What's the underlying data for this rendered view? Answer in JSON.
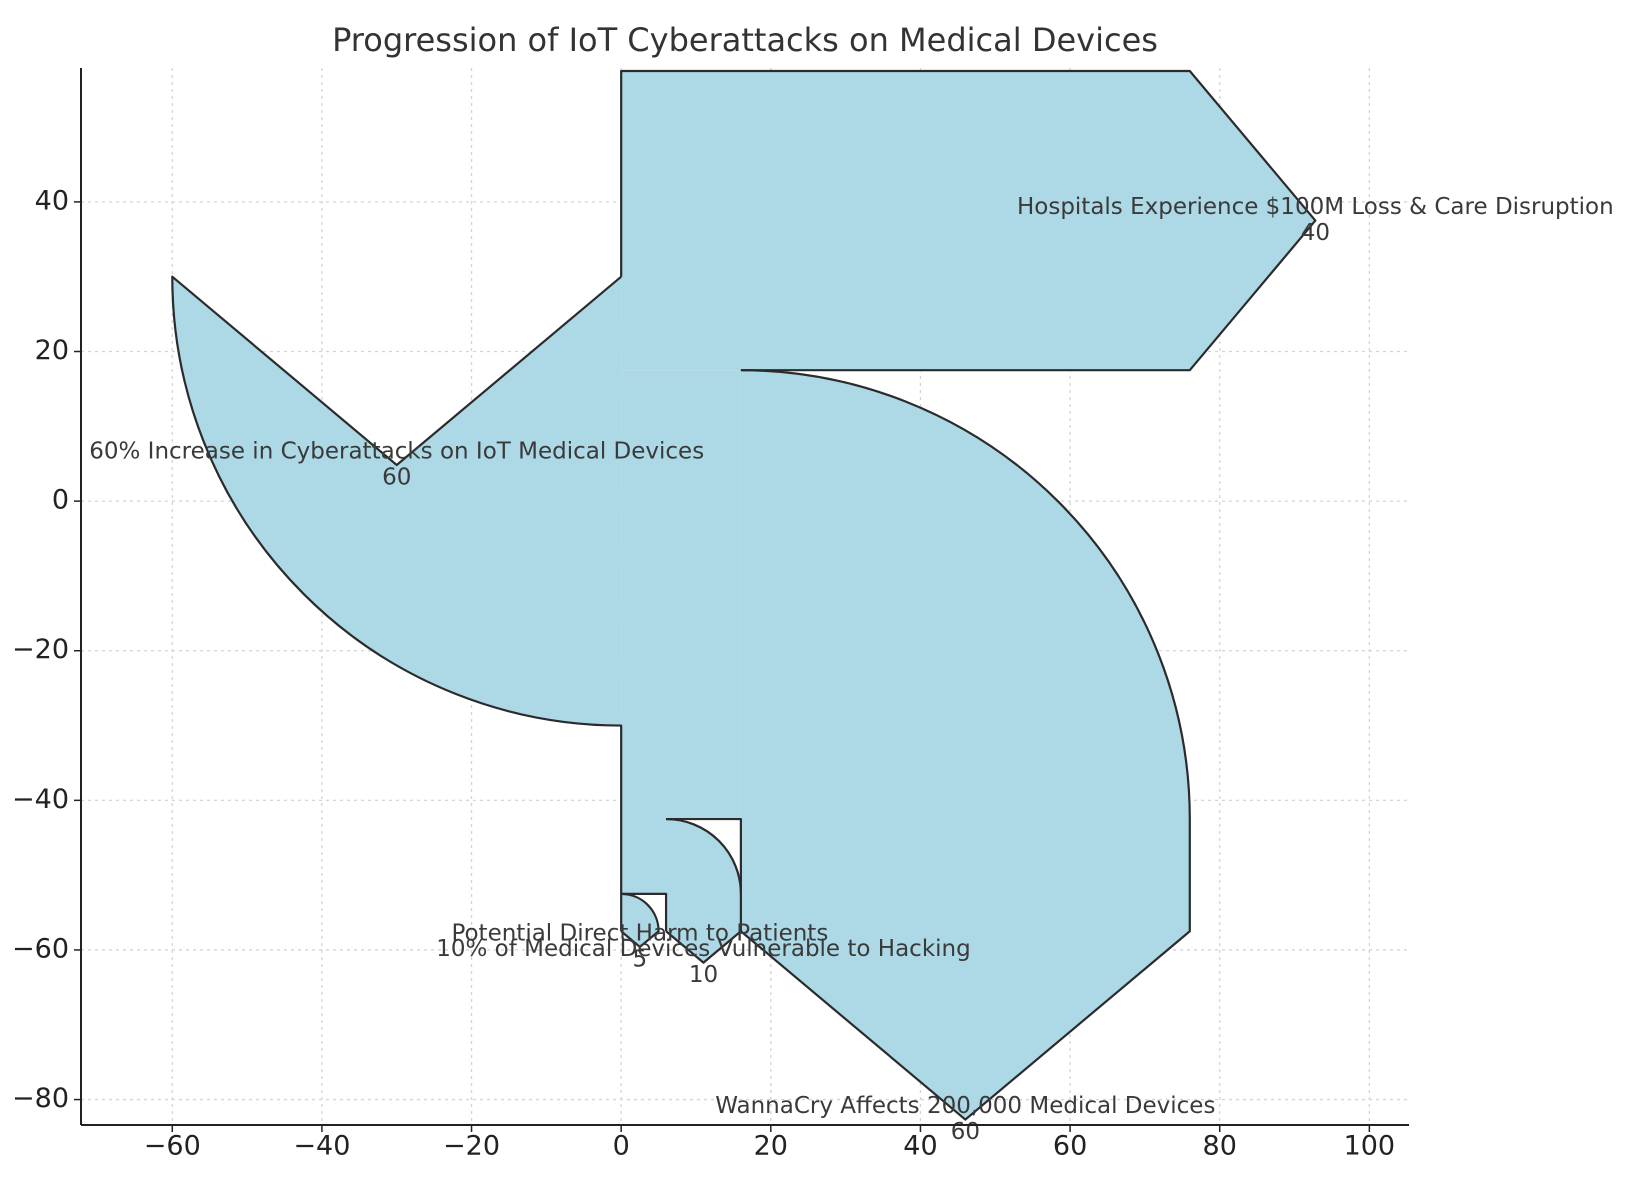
{
  "chart_data": {
    "type": "sankey",
    "title": "Progression of IoT Cyberattacks on Medical Devices",
    "flows": [
      {
        "label": "60% Increase in Cyberattacks on IoT Medical Devices",
        "value": 60
      },
      {
        "label": "Hospitals Experience $100M Loss & Care Disruption",
        "value": 40
      },
      {
        "label": "WannaCry Affects 200,000 Medical Devices",
        "value": 60
      },
      {
        "label": "10% of Medical Devices Vulnerable to Hacking",
        "value": 10
      },
      {
        "label": "Potential Direct Harm to Patients",
        "value": 5
      }
    ],
    "color": "#add8e6",
    "xlim": [
      -72.2,
      105.3
    ],
    "ylim": [
      -83.4,
      57.9
    ],
    "xticks": [
      {
        "value": -60,
        "label": "−60"
      },
      {
        "value": -40,
        "label": "−40"
      },
      {
        "value": -20,
        "label": "−20"
      },
      0,
      20,
      40,
      60,
      80,
      100
    ],
    "yticks": [
      {
        "value": -80,
        "label": "−80"
      },
      {
        "value": -60,
        "label": "−60"
      },
      {
        "value": -40,
        "label": "−40"
      },
      {
        "value": -20,
        "label": "−20"
      },
      0,
      20,
      40
    ],
    "grid": true
  }
}
